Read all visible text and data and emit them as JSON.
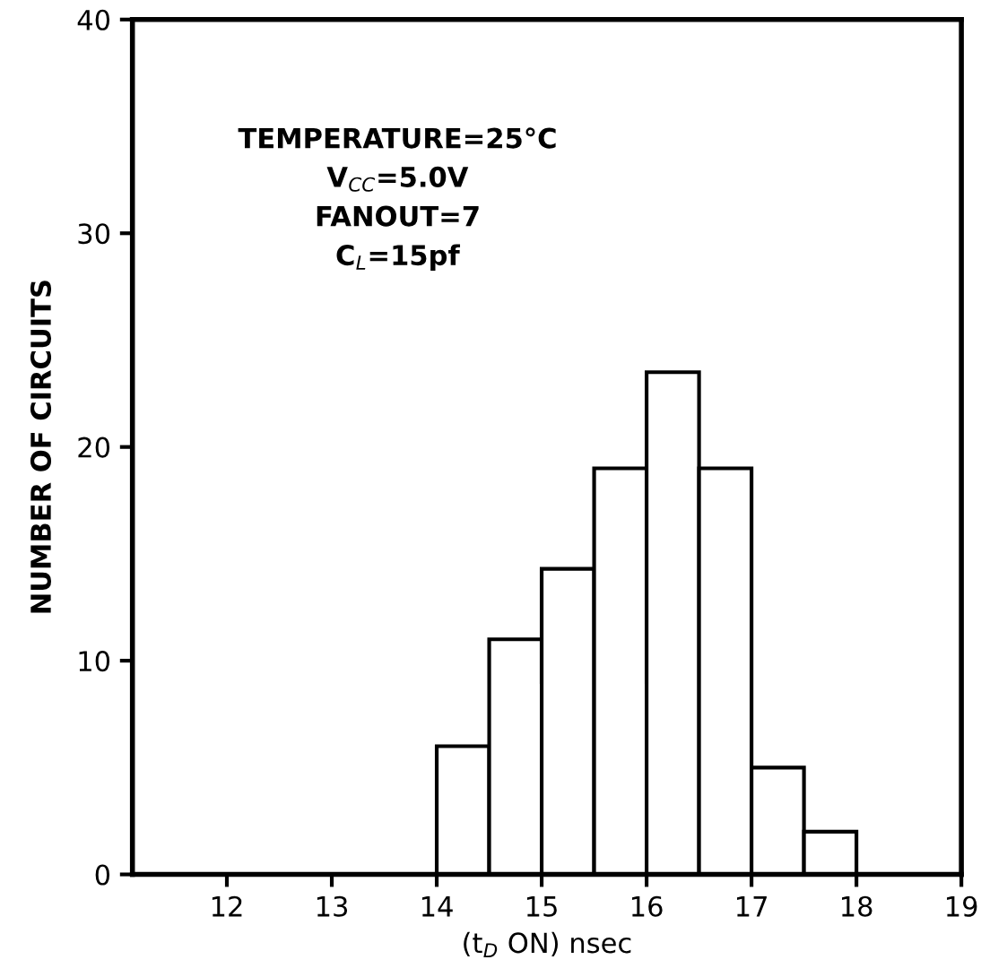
{
  "chart_data": {
    "type": "histogram",
    "xlabel": "(t$_{D}$ ON) nsec",
    "ylabel": "NUMBER OF CIRCUITS",
    "bins": [
      14,
      14.5,
      15,
      15.5,
      16,
      16.5,
      17,
      17.5,
      18
    ],
    "values": [
      6,
      11,
      14.3,
      19,
      23.5,
      19,
      5,
      2
    ],
    "color": "#ffffff",
    "xlim": [
      11.1,
      19
    ],
    "xticks": [
      12,
      13,
      14,
      15,
      16,
      17,
      18,
      19
    ],
    "ylim": [
      0,
      40
    ],
    "yticks": [
      0,
      10,
      20,
      30,
      40
    ],
    "grid": false,
    "annotations": [
      "TEMPERATURE=25°C\nV$_{CC}$=5.0V\nFANOUT=7\nC$_{L}$=15pf"
    ]
  }
}
